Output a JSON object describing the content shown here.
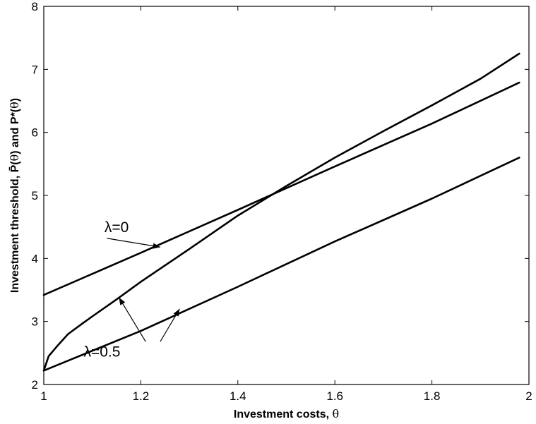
{
  "chart_data": {
    "type": "line",
    "title": "",
    "xlabel": "Investment costs, θ",
    "ylabel": "Investment threshold, P̄(θ) and P*(θ)",
    "xlim": [
      1,
      2
    ],
    "ylim": [
      2,
      8
    ],
    "xticks": [
      1,
      1.2,
      1.4,
      1.6,
      1.8,
      2
    ],
    "xtick_labels": [
      "1",
      "1.2",
      "1.4",
      "1.6",
      "1.8",
      "2"
    ],
    "yticks": [
      2,
      3,
      4,
      5,
      6,
      7,
      8
    ],
    "ytick_labels": [
      "2",
      "3",
      "4",
      "5",
      "6",
      "7",
      "8"
    ],
    "grid": false,
    "series": [
      {
        "label": "λ=0",
        "x": [
          1,
          1.2,
          1.4,
          1.6,
          1.8,
          1.98
        ],
        "y": [
          3.42,
          4.09,
          4.77,
          5.46,
          6.14,
          6.79
        ]
      },
      {
        "label": "λ=0.5",
        "x": [
          1,
          1.01,
          1.03,
          1.05,
          1.08,
          1.1,
          1.15,
          1.2,
          1.3,
          1.4,
          1.5,
          1.6,
          1.7,
          1.8,
          1.9,
          1.98
        ],
        "y": [
          2.22,
          2.45,
          2.63,
          2.8,
          2.97,
          3.08,
          3.35,
          3.63,
          4.15,
          4.68,
          5.15,
          5.6,
          6.02,
          6.43,
          6.85,
          7.25
        ]
      },
      {
        "label": "λ=0.5",
        "x": [
          1,
          1.2,
          1.4,
          1.6,
          1.8,
          1.98
        ],
        "y": [
          2.22,
          2.85,
          3.55,
          4.27,
          4.95,
          5.6
        ]
      }
    ],
    "annotations": [
      {
        "text": "λ=0",
        "text_pos": [
          1.15,
          4.42
        ],
        "arrows": [
          {
            "from": [
              1.13,
              4.32
            ],
            "to": [
              1.24,
              4.18
            ]
          }
        ]
      },
      {
        "text": "λ=0.5",
        "text_pos": [
          1.12,
          2.44
        ],
        "arrows": [
          {
            "from": [
              1.21,
              2.68
            ],
            "to": [
              1.155,
              3.38
            ]
          },
          {
            "from": [
              1.24,
              2.68
            ],
            "to": [
              1.28,
              3.2
            ]
          }
        ]
      }
    ]
  }
}
